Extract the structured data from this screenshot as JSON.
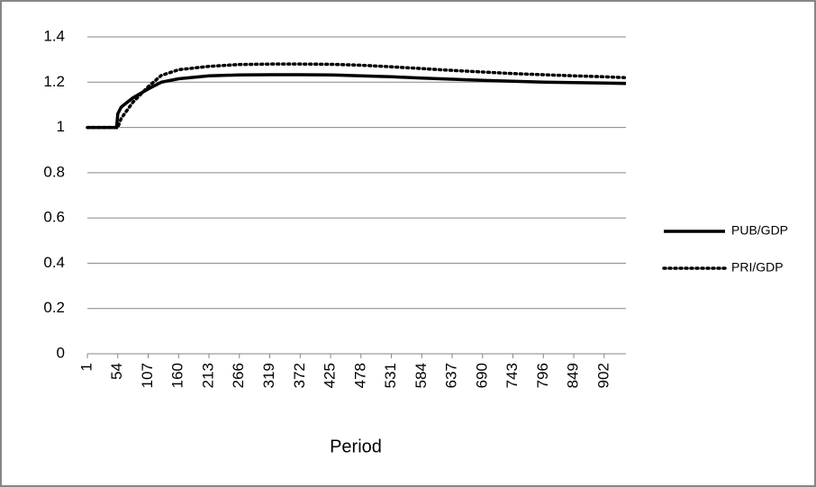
{
  "chart_data": {
    "type": "line",
    "x_label": "Period",
    "x": [
      1,
      52,
      54,
      60,
      80,
      107,
      130,
      160,
      213,
      266,
      319,
      372,
      425,
      478,
      531,
      584,
      637,
      690,
      743,
      796,
      849,
      902,
      940
    ],
    "series": [
      {
        "name": "PUB/GDP",
        "color": "#000000",
        "dash": "solid",
        "values": [
          1,
          1,
          1.06,
          1.09,
          1.13,
          1.17,
          1.2,
          1.215,
          1.228,
          1.232,
          1.233,
          1.233,
          1.232,
          1.228,
          1.224,
          1.218,
          1.213,
          1.208,
          1.204,
          1.2,
          1.198,
          1.196,
          1.194
        ]
      },
      {
        "name": "PRI/GDP",
        "color": "#000000",
        "dash": "dotted",
        "values": [
          1,
          1,
          1,
          1.04,
          1.11,
          1.18,
          1.23,
          1.255,
          1.27,
          1.278,
          1.28,
          1.28,
          1.279,
          1.275,
          1.268,
          1.26,
          1.252,
          1.245,
          1.238,
          1.233,
          1.228,
          1.224,
          1.22
        ]
      }
    ],
    "xlim": [
      1,
      940
    ],
    "xticks": [
      1,
      54,
      107,
      160,
      213,
      266,
      319,
      372,
      425,
      478,
      531,
      584,
      637,
      690,
      743,
      796,
      849,
      902
    ],
    "ylim": [
      0,
      1.4
    ],
    "yticks": [
      0,
      0.2,
      0.4,
      0.6,
      0.8,
      1,
      1.2,
      1.4
    ],
    "grid": true,
    "legend": "right"
  }
}
